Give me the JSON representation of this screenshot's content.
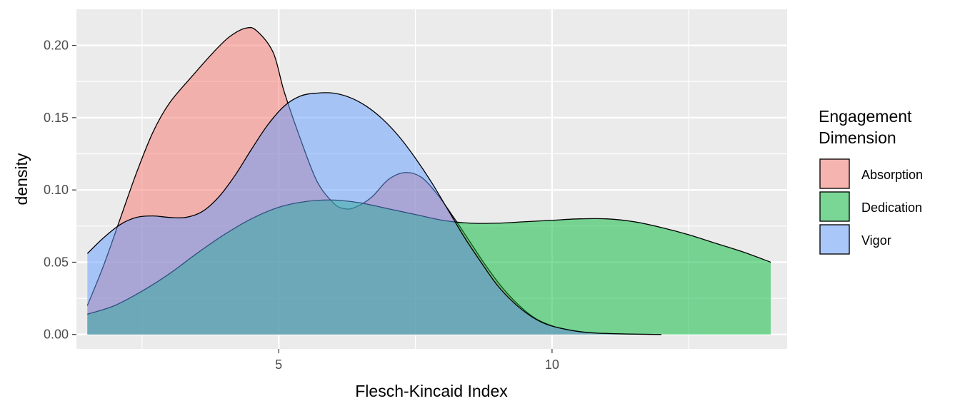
{
  "chart_data": {
    "type": "area",
    "subtype": "density",
    "xlabel": "Flesch-Kincaid Index",
    "ylabel": "density",
    "xlim": [
      1.3,
      14.3
    ],
    "ylim": [
      -0.01,
      0.225
    ],
    "x_ticks": [
      5,
      10
    ],
    "x_tick_labels": [
      "5",
      "10"
    ],
    "y_ticks": [
      0,
      0.05,
      0.1,
      0.15,
      0.2
    ],
    "y_tick_labels": [
      "0.00",
      "0.05",
      "0.10",
      "0.15",
      "0.20"
    ],
    "grid": true,
    "panel_background": "#ebebeb",
    "legend": {
      "title_lines": [
        "Engagement",
        "Dimension"
      ],
      "position": "right"
    },
    "series": [
      {
        "name": "Absorption",
        "color": "#F8766D",
        "x": [
          1.5,
          1.8,
          2.1,
          2.4,
          2.7,
          3.0,
          3.4,
          3.8,
          4.1,
          4.4,
          4.6,
          4.9,
          5.1,
          5.4,
          5.7,
          6.0,
          6.2,
          6.4,
          6.7,
          7.0,
          7.3,
          7.6,
          7.9,
          8.2,
          8.5,
          8.8,
          9.1,
          9.4,
          9.7,
          10.0,
          10.3,
          10.6,
          11.0,
          11.5,
          12.0
        ],
        "y": [
          0.02,
          0.048,
          0.08,
          0.112,
          0.14,
          0.16,
          0.178,
          0.195,
          0.206,
          0.212,
          0.21,
          0.195,
          0.168,
          0.135,
          0.106,
          0.091,
          0.087,
          0.088,
          0.095,
          0.107,
          0.112,
          0.109,
          0.097,
          0.081,
          0.064,
          0.047,
          0.032,
          0.02,
          0.011,
          0.006,
          0.003,
          0.0015,
          0.0006,
          0.0002,
          0.0
        ]
      },
      {
        "name": "Dedication",
        "color": "#00BA38",
        "x": [
          1.5,
          2.0,
          2.5,
          3.0,
          3.5,
          4.0,
          4.5,
          5.0,
          5.5,
          6.0,
          6.5,
          7.0,
          7.5,
          8.0,
          8.5,
          9.0,
          9.5,
          10.0,
          10.5,
          11.0,
          11.5,
          12.0,
          12.5,
          13.0,
          13.5,
          14.0
        ],
        "y": [
          0.014,
          0.02,
          0.03,
          0.042,
          0.056,
          0.069,
          0.08,
          0.088,
          0.092,
          0.093,
          0.091,
          0.087,
          0.083,
          0.079,
          0.077,
          0.077,
          0.078,
          0.079,
          0.08,
          0.08,
          0.078,
          0.074,
          0.069,
          0.063,
          0.057,
          0.05
        ]
      },
      {
        "name": "Vigor",
        "color": "#619CFF",
        "x": [
          1.5,
          1.8,
          2.1,
          2.4,
          2.7,
          3.0,
          3.3,
          3.6,
          3.9,
          4.2,
          4.5,
          4.8,
          5.1,
          5.4,
          5.7,
          6.0,
          6.3,
          6.6,
          6.9,
          7.2,
          7.5,
          7.8,
          8.1,
          8.4,
          8.7,
          9.0,
          9.3,
          9.6,
          9.9,
          10.2,
          10.5,
          10.8,
          11.2,
          11.6,
          12.0
        ],
        "y": [
          0.056,
          0.067,
          0.076,
          0.081,
          0.082,
          0.081,
          0.081,
          0.085,
          0.095,
          0.11,
          0.128,
          0.145,
          0.158,
          0.165,
          0.167,
          0.167,
          0.164,
          0.158,
          0.149,
          0.137,
          0.122,
          0.105,
          0.086,
          0.067,
          0.05,
          0.034,
          0.022,
          0.013,
          0.007,
          0.004,
          0.002,
          0.001,
          0.0005,
          0.0002,
          0.0
        ]
      }
    ]
  }
}
